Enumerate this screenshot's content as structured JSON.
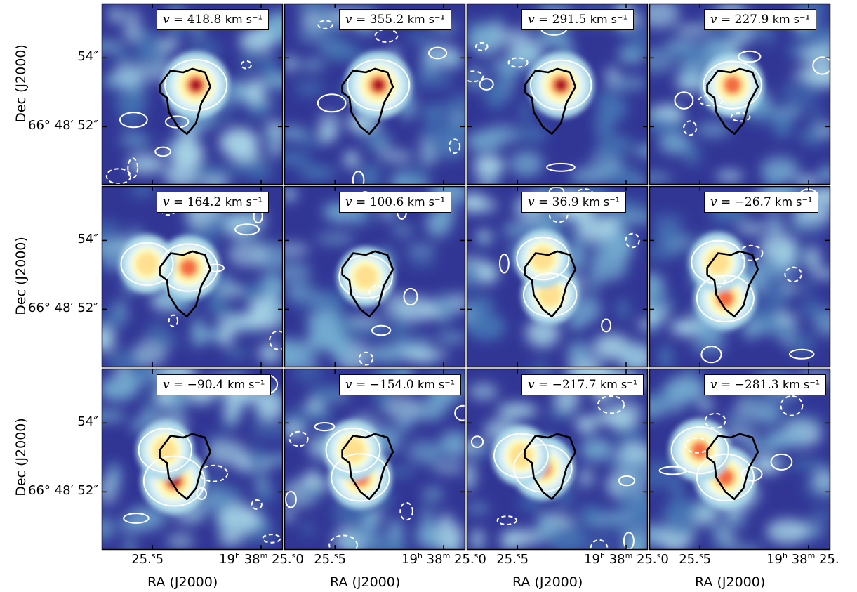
{
  "chart_data": {
    "type": "heatmap",
    "layout": {
      "rows": 3,
      "cols": 4
    },
    "xlabel": "RA (J2000)",
    "ylabel": "Dec (J2000)",
    "x_ticks": [
      {
        "main": "25.",
        "sup": "s",
        "tail": "5"
      },
      {
        "main": "19",
        "sup": "h",
        "mid": " 38",
        "sup2": "m",
        "tail": " 25."
      },
      {
        "sup": "s",
        "tail": "0"
      }
    ],
    "y_ticks": [
      {
        "label": "54″"
      },
      {
        "label": "66° 48′ 52″"
      }
    ],
    "velocity_unit": "km s⁻¹",
    "panels": [
      {
        "v": "418.8"
      },
      {
        "v": "355.2"
      },
      {
        "v": "291.5"
      },
      {
        "v": "227.9"
      },
      {
        "v": "164.2"
      },
      {
        "v": "100.6"
      },
      {
        "v": "36.9"
      },
      {
        "v": "−26.7"
      },
      {
        "v": "−90.4"
      },
      {
        "v": "−154.0"
      },
      {
        "v": "−217.7"
      },
      {
        "v": "−281.3"
      }
    ],
    "colormap": [
      "#313695",
      "#4575b4",
      "#74add1",
      "#abd9e9",
      "#e0f3f8",
      "#ffffbf",
      "#fee090",
      "#fdae61",
      "#f46d43",
      "#d73027",
      "#a50026"
    ],
    "background_color": "#313695",
    "contour_color_positive": "#ffffff",
    "contour_color_reference": "#000000",
    "grid": false
  }
}
